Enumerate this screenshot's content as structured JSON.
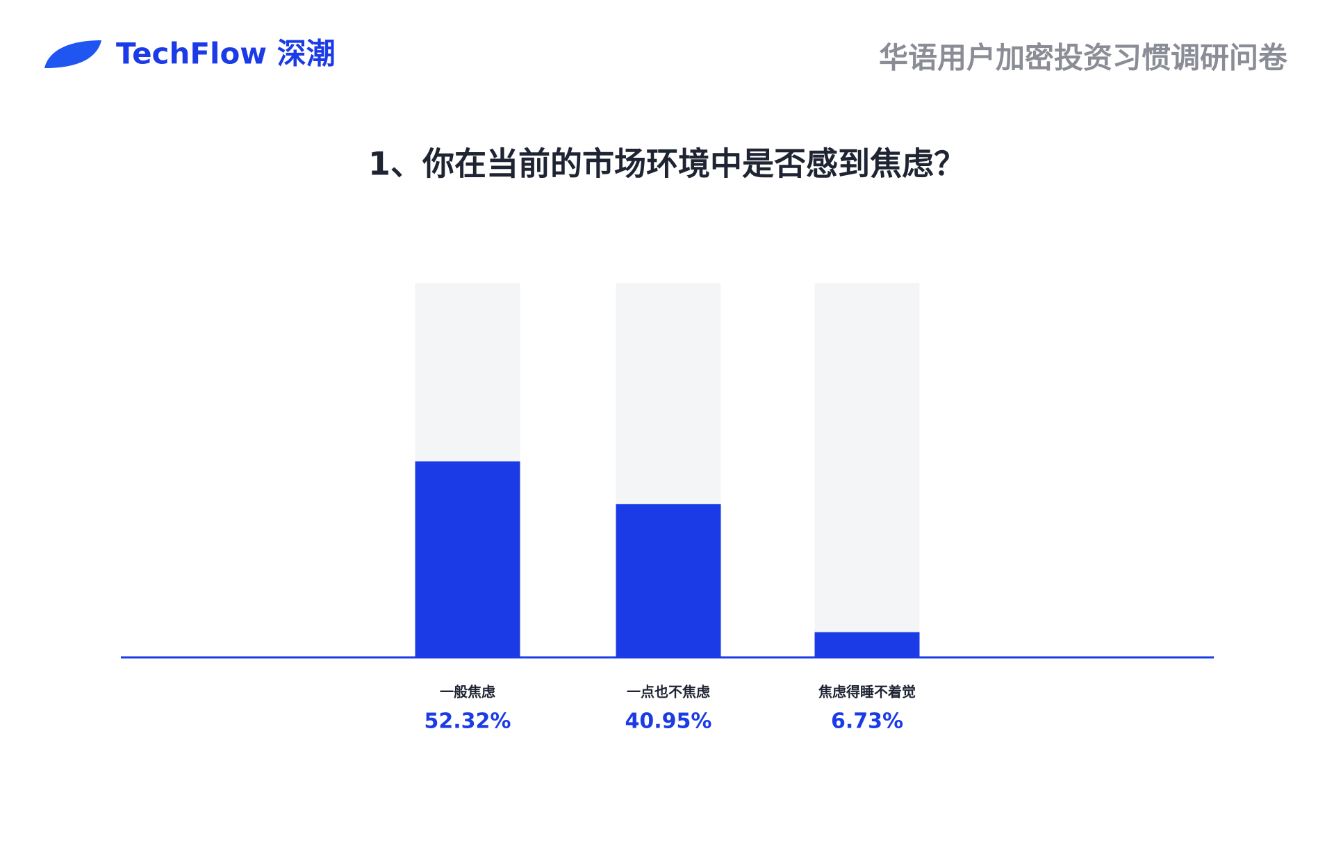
{
  "header": {
    "logo": "TechFlow 深潮",
    "report_title": "华语用户加密投资习惯调研问卷"
  },
  "chart_data": {
    "type": "bar",
    "title": "1、你在当前的市场环境中是否感到焦虑？",
    "categories": [
      "一般焦虑",
      "一点也不焦虑",
      "焦虑得睡不着觉"
    ],
    "values": [
      52.32,
      40.95,
      6.73
    ],
    "value_labels": [
      "52.32%",
      "40.95%",
      "6.73%"
    ],
    "color": "#1a3be6",
    "track_color": "#f4f5f7",
    "ylim": [
      0,
      100
    ]
  }
}
